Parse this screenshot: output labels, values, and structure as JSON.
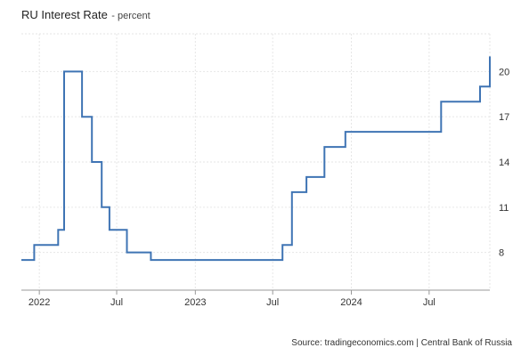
{
  "chart_data": {
    "type": "line",
    "step": true,
    "title": "RU Interest Rate",
    "subtitle": "- percent",
    "xlabel": "",
    "ylabel": "",
    "xlim": [
      "2021-11-20",
      "2024-11-20"
    ],
    "ylim": [
      5.5,
      22.5
    ],
    "y_ticks": [
      8,
      11,
      14,
      17,
      20
    ],
    "y_axis_position": "right",
    "x_ticks": [
      {
        "date": "2022-01-01",
        "label": "2022"
      },
      {
        "date": "2022-07-01",
        "label": "Jul"
      },
      {
        "date": "2023-01-01",
        "label": "2023"
      },
      {
        "date": "2023-07-01",
        "label": "Jul"
      },
      {
        "date": "2024-01-01",
        "label": "2024"
      },
      {
        "date": "2024-07-01",
        "label": "Jul"
      }
    ],
    "grid": true,
    "line_color": "#3f74b4",
    "series": [
      {
        "name": "",
        "x": [
          "2021-11-20",
          "2021-12-20",
          "2022-02-14",
          "2022-02-28",
          "2022-04-11",
          "2022-05-04",
          "2022-05-27",
          "2022-06-14",
          "2022-07-25",
          "2022-09-19",
          "2023-07-24",
          "2023-08-15",
          "2023-09-18",
          "2023-10-30",
          "2023-12-18",
          "2024-07-29",
          "2024-10-28",
          "2024-11-20"
        ],
        "y": [
          7.5,
          8.5,
          9.5,
          20,
          17,
          14,
          11,
          9.5,
          8,
          7.5,
          8.5,
          12,
          13,
          15,
          16,
          18,
          19,
          21
        ]
      }
    ]
  },
  "source": "Source: tradingeconomics.com | Central Bank of Russia"
}
